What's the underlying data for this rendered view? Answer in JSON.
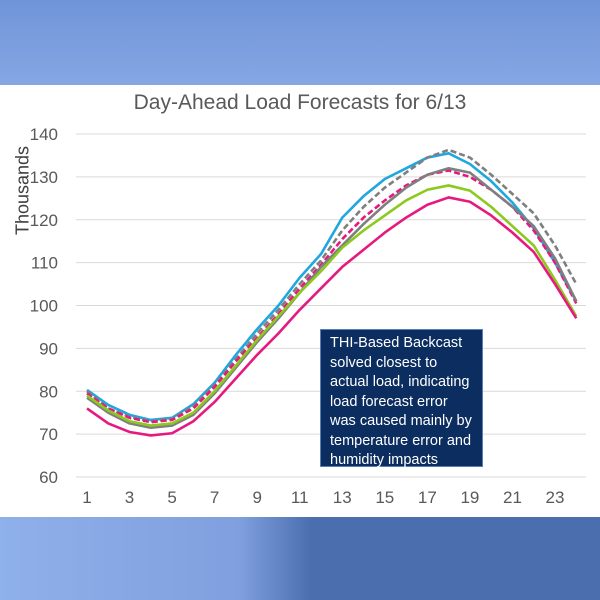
{
  "chart_data": {
    "type": "line",
    "title": "Day-Ahead Load Forecasts for 6/13",
    "xlabel": "",
    "ylabel": "Thousands",
    "x": [
      1,
      2,
      3,
      4,
      5,
      6,
      7,
      8,
      9,
      10,
      11,
      12,
      13,
      14,
      15,
      16,
      17,
      18,
      19,
      20,
      21,
      22,
      23,
      24
    ],
    "xticks": [
      "1",
      "3",
      "5",
      "7",
      "9",
      "11",
      "13",
      "15",
      "17",
      "19",
      "21",
      "23"
    ],
    "yticks": [
      "60",
      "70",
      "80",
      "90",
      "100",
      "110",
      "120",
      "130",
      "140"
    ],
    "ylim": [
      60,
      140
    ],
    "grid": true,
    "series": [
      {
        "color": "#1ea7e1",
        "dash": false,
        "values": [
          80.3,
          76.8,
          74.5,
          73.3,
          73.8,
          77,
          82,
          88.5,
          94.5,
          100,
          106.5,
          112,
          120.5,
          125.5,
          129.5,
          132,
          134.5,
          135.5,
          133,
          129,
          124,
          118,
          110,
          101
        ]
      },
      {
        "color": "#7f7f7f",
        "dash": true,
        "values": [
          80,
          76,
          74,
          73,
          73.6,
          76.5,
          81.5,
          87.5,
          93.5,
          99,
          105,
          110.5,
          117.5,
          123,
          127.5,
          131,
          134.5,
          136.3,
          134.5,
          130.5,
          126,
          121.5,
          114,
          105
        ]
      },
      {
        "color": "#e6197f",
        "dash": true,
        "values": [
          79.5,
          76,
          73.8,
          72.8,
          73.3,
          76,
          81,
          87,
          92.5,
          98,
          104,
          109.5,
          115.5,
          120.5,
          124.5,
          128,
          130.5,
          131.5,
          130,
          127,
          123,
          117.5,
          110,
          100.5
        ]
      },
      {
        "color": "#7f7f7f",
        "dash": false,
        "values": [
          78.5,
          75,
          72.5,
          71.5,
          72,
          74.5,
          79.5,
          85.5,
          91.5,
          97,
          103,
          109,
          114,
          119,
          123.5,
          127.5,
          130.5,
          132,
          131,
          127,
          123,
          118.5,
          111,
          101
        ]
      },
      {
        "color": "#8cc91e",
        "dash": false,
        "values": [
          79,
          75.5,
          73,
          72,
          72.5,
          75,
          80,
          86,
          92,
          97.5,
          103,
          108,
          113.5,
          117.5,
          121,
          124.5,
          127,
          128,
          126.8,
          123,
          118.5,
          114,
          106,
          97.5
        ]
      },
      {
        "color": "#e6197f",
        "dash": false,
        "values": [
          76,
          72.5,
          70.5,
          69.7,
          70.2,
          73,
          77.5,
          83,
          88.5,
          93.5,
          99,
          104,
          109,
          113,
          117,
          120.5,
          123.5,
          125.2,
          124.2,
          121,
          117,
          112.5,
          105,
          97
        ]
      }
    ],
    "annotation": "THI-Based Backcast solved closest to actual load, indicating load forecast error was caused mainly by temperature error and humidity impacts"
  }
}
